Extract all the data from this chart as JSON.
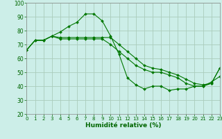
{
  "xlabel": "Humidité relative (%)",
  "background_color": "#cceee8",
  "grid_color": "#aaccbb",
  "line_color": "#007700",
  "x": [
    0,
    1,
    2,
    3,
    4,
    5,
    6,
    7,
    8,
    9,
    10,
    11,
    12,
    13,
    14,
    15,
    16,
    17,
    18,
    19,
    20,
    21,
    22,
    23
  ],
  "line1": [
    66,
    73,
    73,
    76,
    79,
    83,
    86,
    92,
    92,
    87,
    76,
    63,
    46,
    41,
    38,
    40,
    40,
    37,
    38,
    38,
    40,
    40,
    43,
    47
  ],
  "line2": [
    66,
    73,
    73,
    76,
    75,
    75,
    75,
    75,
    75,
    75,
    75,
    70,
    65,
    60,
    55,
    53,
    52,
    50,
    48,
    45,
    42,
    41,
    42,
    53
  ],
  "line3": [
    66,
    73,
    73,
    76,
    74,
    74,
    74,
    74,
    74,
    74,
    70,
    65,
    60,
    55,
    52,
    50,
    50,
    48,
    46,
    42,
    40,
    40,
    42,
    53
  ],
  "ylim": [
    20,
    100
  ],
  "yticks": [
    20,
    30,
    40,
    50,
    60,
    70,
    80,
    90,
    100
  ],
  "xlim": [
    0,
    23
  ],
  "xticks": [
    0,
    1,
    2,
    3,
    4,
    5,
    6,
    7,
    8,
    9,
    10,
    11,
    12,
    13,
    14,
    15,
    16,
    17,
    18,
    19,
    20,
    21,
    22,
    23
  ]
}
